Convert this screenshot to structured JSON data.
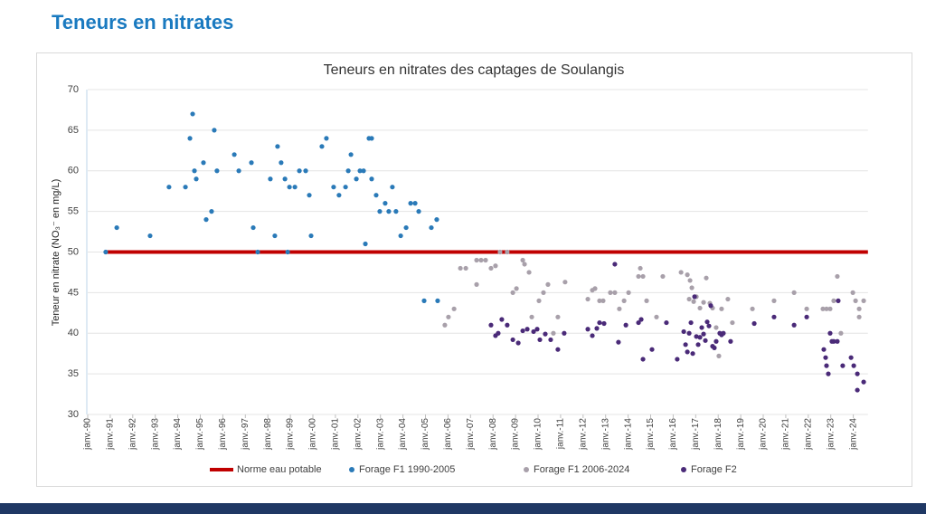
{
  "heading": "Teneurs en nitrates",
  "chart_data": {
    "type": "scatter",
    "title": "Teneurs en nitrates des captages de Soulangis",
    "ylabel": "Teneur en nitrate (NO₃⁻ en mg/L)",
    "xlim": [
      1990,
      2024.65
    ],
    "ylim": [
      30,
      70
    ],
    "yticks": [
      30,
      35,
      40,
      45,
      50,
      55,
      60,
      65,
      70
    ],
    "xticks": [
      {
        "value": 1990,
        "label": "janv.-90"
      },
      {
        "value": 1991,
        "label": "janv.-91"
      },
      {
        "value": 1992,
        "label": "janv.-92"
      },
      {
        "value": 1993,
        "label": "janv.-93"
      },
      {
        "value": 1994,
        "label": "janv.-94"
      },
      {
        "value": 1995,
        "label": "janv.-95"
      },
      {
        "value": 1996,
        "label": "janv.-96"
      },
      {
        "value": 1997,
        "label": "janv.-97"
      },
      {
        "value": 1998,
        "label": "janv.-98"
      },
      {
        "value": 1999,
        "label": "janv.-99"
      },
      {
        "value": 2000,
        "label": "janv.-00"
      },
      {
        "value": 2001,
        "label": "janv.-01"
      },
      {
        "value": 2002,
        "label": "janv.-02"
      },
      {
        "value": 2003,
        "label": "janv.-03"
      },
      {
        "value": 2004,
        "label": "janv.-04"
      },
      {
        "value": 2005,
        "label": "janv.-05"
      },
      {
        "value": 2006,
        "label": "janv.-06"
      },
      {
        "value": 2007,
        "label": "janv.-07"
      },
      {
        "value": 2008,
        "label": "janv.-08"
      },
      {
        "value": 2009,
        "label": "janv.-09"
      },
      {
        "value": 2010,
        "label": "janv.-10"
      },
      {
        "value": 2011,
        "label": "janv.-11"
      },
      {
        "value": 2012,
        "label": "janv.-12"
      },
      {
        "value": 2013,
        "label": "janv.-13"
      },
      {
        "value": 2014,
        "label": "janv.-14"
      },
      {
        "value": 2015,
        "label": "janv.-15"
      },
      {
        "value": 2016,
        "label": "janv.-16"
      },
      {
        "value": 2017,
        "label": "janv.-17"
      },
      {
        "value": 2018,
        "label": "janv.-18"
      },
      {
        "value": 2019,
        "label": "janv.-19"
      },
      {
        "value": 2020,
        "label": "janv.-20"
      },
      {
        "value": 2021,
        "label": "janv.-21"
      },
      {
        "value": 2022,
        "label": "janv.-22"
      },
      {
        "value": 2023,
        "label": "janv.-23"
      },
      {
        "value": 2024,
        "label": "janv.-24"
      }
    ],
    "grid": true,
    "series": [
      {
        "name": "Norme eau potable",
        "color": "#c00000",
        "line": true,
        "x": [
          1990.8,
          2024.65
        ],
        "values": [
          50,
          50
        ]
      },
      {
        "name": "Forage F1 1990-2005",
        "color": "#2a7ab8",
        "x": [
          1990.8,
          1991.29,
          1992.77,
          1993.61,
          1994.34,
          1994.54,
          1994.66,
          1994.74,
          1994.82,
          1995.14,
          1995.26,
          1995.5,
          1995.62,
          1995.74,
          1996.51,
          1996.71,
          1997.27,
          1997.35,
          1997.55,
          1998.11,
          1998.31,
          1998.43,
          1998.59,
          1998.76,
          1998.88,
          1998.96,
          1999.2,
          1999.4,
          1999.68,
          1999.84,
          1999.92,
          2000.4,
          2000.6,
          2000.92,
          2001.16,
          2001.45,
          2001.57,
          2001.69,
          2001.93,
          2002.09,
          2002.25,
          2002.33,
          2002.49,
          2002.61,
          2002.61,
          2002.81,
          2002.97,
          2003.21,
          2003.37,
          2003.53,
          2003.69,
          2003.9,
          2004.14,
          2004.34,
          2004.54,
          2004.7,
          2004.94,
          2005.26,
          2005.5,
          2005.54
        ],
        "values": [
          50,
          53,
          52,
          58,
          58,
          64,
          67,
          60,
          59,
          61,
          54,
          55,
          65,
          60,
          62,
          60,
          61,
          53,
          50,
          59,
          52,
          63,
          61,
          59,
          50,
          58,
          58,
          60,
          60,
          57,
          52,
          63,
          64,
          58,
          57,
          58,
          60,
          62,
          59,
          60,
          60,
          51,
          64,
          64,
          59,
          57,
          55,
          56,
          55,
          58,
          55,
          52,
          53,
          56,
          56,
          55,
          44,
          53,
          54,
          44
        ]
      },
      {
        "name": "Forage F1 2006-2024",
        "color": "#a8a0aa",
        "x": [
          2005.86,
          2006.02,
          2006.27,
          2006.55,
          2006.79,
          2007.27,
          2007.27,
          2007.47,
          2007.67,
          2007.91,
          2008.11,
          2008.31,
          2008.63,
          2008.88,
          2009.04,
          2009.32,
          2009.4,
          2009.6,
          2009.72,
          2010.04,
          2010.24,
          2010.44,
          2010.68,
          2010.88,
          2011.2,
          2012.21,
          2012.41,
          2012.53,
          2012.73,
          2012.89,
          2013.21,
          2013.41,
          2013.61,
          2013.82,
          2014.02,
          2014.46,
          2014.54,
          2014.66,
          2014.82,
          2015.26,
          2015.54,
          2016.35,
          2016.63,
          2016.75,
          2016.83,
          2016.71,
          2016.91,
          2017.03,
          2017.19,
          2017.35,
          2017.47,
          2017.63,
          2017.75,
          2017.91,
          2018.03,
          2018.15,
          2018.43,
          2018.63,
          2019.52,
          2020.48,
          2021.37,
          2021.93,
          2022.65,
          2022.81,
          2022.97,
          2023.13,
          2023.29,
          2023.45,
          2023.98,
          2024.1,
          2024.26,
          2024.26,
          2024.46
        ],
        "values": [
          41,
          42,
          43,
          48,
          48,
          46,
          49,
          49,
          49,
          48,
          48.3,
          50,
          50,
          45,
          45.5,
          49,
          48.5,
          47.5,
          42,
          44,
          45,
          46,
          40,
          42,
          46.3,
          44.2,
          45.3,
          45.5,
          44,
          44,
          45,
          45,
          43,
          44,
          45,
          47,
          48,
          47,
          44,
          42,
          47,
          47.5,
          47.2,
          46.5,
          45.6,
          44.2,
          43.9,
          44.5,
          43.1,
          43.8,
          46.8,
          43.7,
          43.1,
          40.7,
          37.2,
          43,
          44.2,
          41.3,
          43,
          44,
          45,
          43,
          43,
          43,
          43,
          44,
          47,
          40,
          45,
          44,
          43,
          42,
          44
        ]
      },
      {
        "name": "Forage F2",
        "color": "#4a2a78",
        "x": [
          2007.91,
          2008.11,
          2008.23,
          2008.39,
          2008.63,
          2008.88,
          2009.12,
          2009.32,
          2009.52,
          2009.8,
          2009.96,
          2010.08,
          2010.32,
          2010.56,
          2010.88,
          2011.16,
          2012.21,
          2012.41,
          2012.61,
          2012.73,
          2012.93,
          2013.41,
          2013.57,
          2013.9,
          2014.46,
          2014.58,
          2014.66,
          2015.06,
          2015.7,
          2016.18,
          2016.47,
          2016.55,
          2016.63,
          2016.71,
          2016.79,
          2016.87,
          2016.95,
          2017.03,
          2017.11,
          2017.19,
          2017.27,
          2017.35,
          2017.43,
          2017.51,
          2017.59,
          2017.67,
          2017.75,
          2017.83,
          2017.91,
          2018.07,
          2018.15,
          2018.23,
          2018.55,
          2019.6,
          2020.48,
          2021.37,
          2021.93,
          2022.69,
          2022.77,
          2022.81,
          2022.89,
          2022.97,
          2023.05,
          2023.13,
          2023.29,
          2023.33,
          2023.53,
          2023.9,
          2024.02,
          2024.18,
          2024.18,
          2024.46
        ],
        "values": [
          41,
          39.7,
          40,
          41.7,
          41,
          39.2,
          38.8,
          40.3,
          40.5,
          40.2,
          40.5,
          39.2,
          39.9,
          39.2,
          38,
          40,
          40.5,
          39.7,
          40.6,
          41.3,
          41.2,
          48.5,
          38.9,
          41,
          41.3,
          41.7,
          36.8,
          38,
          41.3,
          36.8,
          40.2,
          38.6,
          37.7,
          40,
          41.3,
          37.5,
          44.5,
          39.6,
          38.6,
          39.5,
          40.7,
          39.9,
          39.1,
          41.4,
          40.9,
          43.4,
          38.4,
          38.2,
          39,
          40,
          39.8,
          40,
          39,
          41.2,
          42,
          41,
          42,
          38,
          37,
          36,
          35,
          40,
          39,
          39,
          39,
          44,
          36,
          37,
          36,
          35,
          33,
          34
        ]
      }
    ]
  }
}
